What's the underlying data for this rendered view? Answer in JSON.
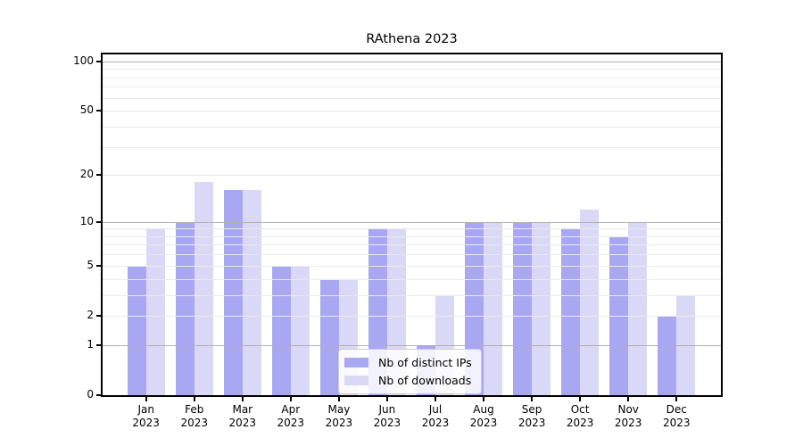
{
  "title": "RAthena 2023",
  "chart_data": {
    "type": "bar",
    "title": "RAthena 2023",
    "categories": [
      "Jan",
      "Feb",
      "Mar",
      "Apr",
      "May",
      "Jun",
      "Jul",
      "Aug",
      "Sep",
      "Oct",
      "Nov",
      "Dec"
    ],
    "category_year": "2023",
    "series": [
      {
        "name": "Nb of distinct IPs",
        "color": "#a8a8f2",
        "values": [
          5,
          10,
          16,
          5,
          4,
          9,
          1,
          10,
          10,
          9,
          8,
          2
        ]
      },
      {
        "name": "Nb of downloads",
        "color": "#d9d9f7",
        "values": [
          9,
          18,
          16,
          5,
          4,
          9,
          3,
          10,
          10,
          12,
          10,
          3
        ]
      }
    ],
    "yscale": "log1p",
    "ylim": [
      0,
      110
    ],
    "yticks": [
      0,
      1,
      2,
      5,
      10,
      20,
      50,
      100
    ],
    "gridlines": {
      "major": [
        1,
        10,
        100
      ],
      "minor": [
        2,
        3,
        4,
        5,
        6,
        7,
        8,
        9,
        20,
        30,
        40,
        50,
        60,
        70,
        80,
        90
      ]
    },
    "legend": {
      "position": "inside-bottom-center"
    },
    "colors": {
      "grid_major": "#b0b0b0",
      "grid_minor": "#e9e9e9",
      "axis": "#000000",
      "background": "#ffffff"
    }
  }
}
